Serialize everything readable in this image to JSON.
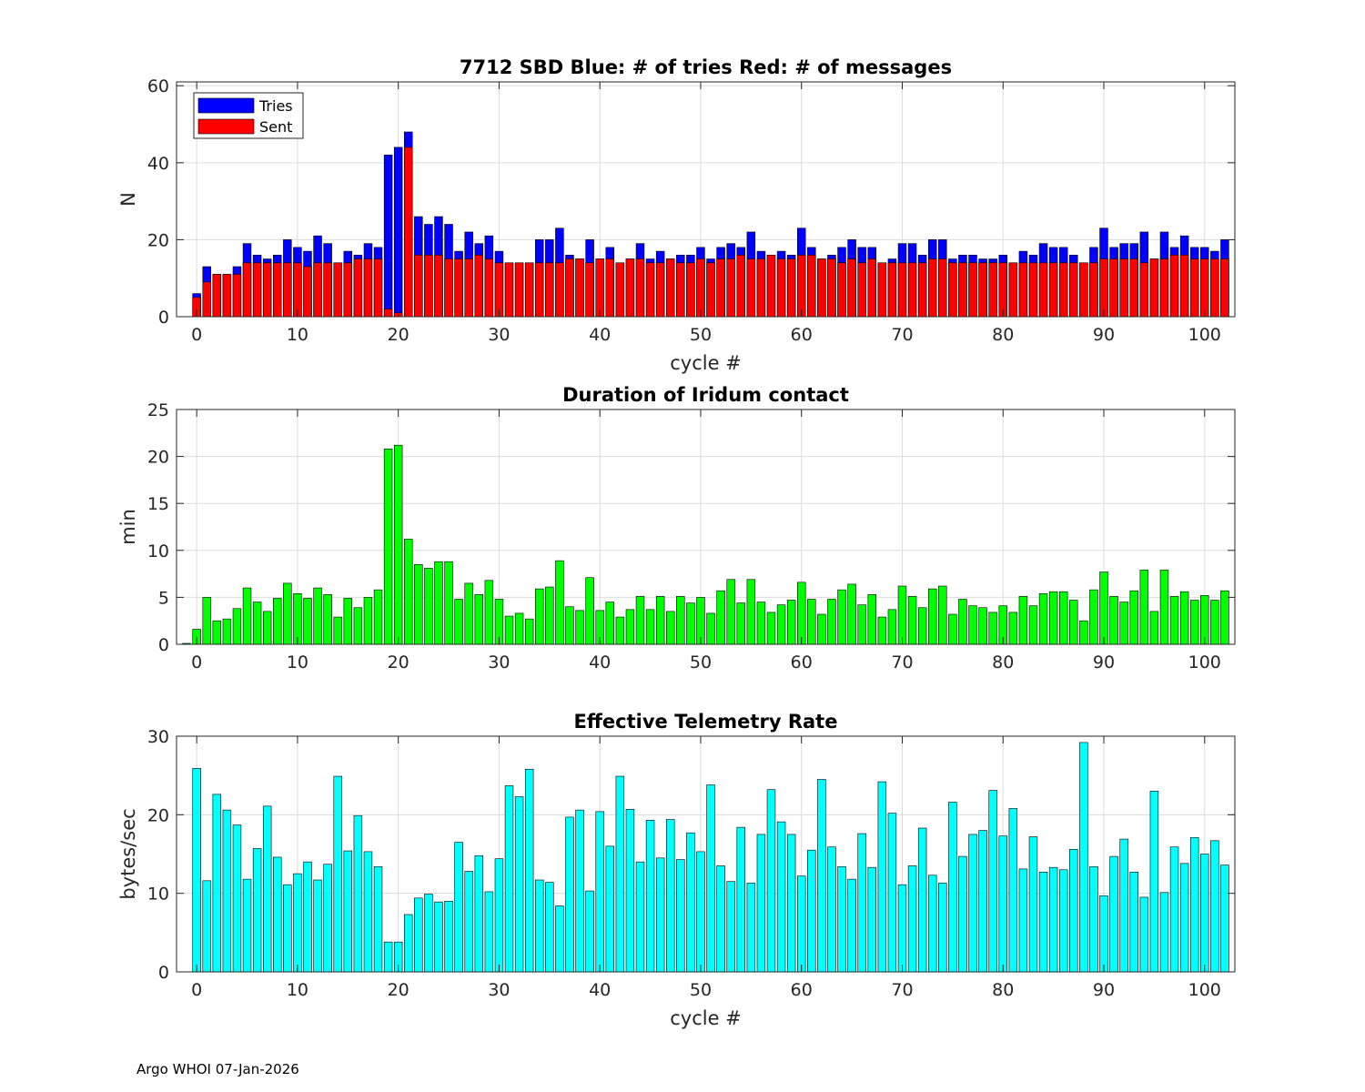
{
  "footer": "Argo WHOI 07-Jan-2026",
  "colors": {
    "tries": "#0000ff",
    "sent": "#ff0000",
    "duration": "#00ff00",
    "rate": "#00ffff",
    "grid": "#dcdcdc",
    "axis": "#262626"
  },
  "chart_data": [
    {
      "type": "bar",
      "title": "7712 SBD  Blue: # of tries   Red: # of messages",
      "xlabel": "cycle #",
      "ylabel": "N",
      "xlim": [
        -2,
        103
      ],
      "ylim": [
        0,
        61
      ],
      "xticks": [
        0,
        10,
        20,
        30,
        40,
        50,
        60,
        70,
        80,
        90,
        100
      ],
      "yticks": [
        0,
        20,
        40,
        60
      ],
      "legend": {
        "position": "top-left",
        "entries": [
          "Tries",
          "Sent"
        ]
      },
      "x_start": 0,
      "series": [
        {
          "name": "Tries",
          "values": [
            6,
            13,
            11,
            11,
            13,
            19,
            16,
            15,
            16,
            20,
            18,
            17,
            21,
            19,
            14,
            17,
            16,
            19,
            18,
            42,
            44,
            48,
            26,
            24,
            26,
            24,
            17,
            22,
            19,
            21,
            17,
            14,
            14,
            14,
            20,
            20,
            23,
            16,
            15,
            20,
            15,
            18,
            14,
            15,
            19,
            15,
            17,
            15,
            16,
            16,
            18,
            15,
            18,
            19,
            18,
            22,
            17,
            16,
            17,
            16,
            23,
            18,
            15,
            16,
            18,
            20,
            18,
            18,
            14,
            15,
            19,
            19,
            16,
            20,
            20,
            15,
            16,
            16,
            15,
            15,
            16,
            14,
            17,
            16,
            19,
            18,
            18,
            16,
            14,
            18,
            23,
            18,
            19,
            19,
            22,
            15,
            22,
            18,
            21,
            18,
            18,
            17,
            20
          ]
        },
        {
          "name": "Sent",
          "values": [
            5,
            9,
            11,
            11,
            11,
            14,
            14,
            14,
            14,
            14,
            14,
            13,
            14,
            14,
            14,
            14,
            15,
            15,
            15,
            2,
            1,
            44,
            16,
            16,
            16,
            15,
            15,
            15,
            16,
            15,
            14,
            14,
            14,
            14,
            14,
            14,
            14,
            15,
            15,
            14,
            15,
            15,
            14,
            15,
            15,
            14,
            14,
            15,
            14,
            14,
            15,
            14,
            15,
            15,
            16,
            15,
            15,
            16,
            15,
            15,
            16,
            16,
            15,
            15,
            14,
            15,
            14,
            15,
            14,
            14,
            14,
            14,
            14,
            15,
            15,
            14,
            14,
            14,
            14,
            14,
            14,
            14,
            14,
            14,
            14,
            14,
            14,
            14,
            14,
            14,
            15,
            15,
            15,
            15,
            14,
            15,
            15,
            16,
            16,
            15,
            15,
            15,
            15
          ]
        }
      ]
    },
    {
      "type": "bar",
      "title": "Duration of Iridum contact",
      "xlabel": "",
      "ylabel": "min",
      "xlim": [
        -2,
        103
      ],
      "ylim": [
        0,
        25
      ],
      "xticks": [
        0,
        10,
        20,
        30,
        40,
        50,
        60,
        70,
        80,
        90,
        100
      ],
      "yticks": [
        0,
        5,
        10,
        15,
        20,
        25
      ],
      "x_start": -1,
      "series": [
        {
          "name": "Duration",
          "values": [
            0.1,
            1.6,
            5.0,
            2.5,
            2.7,
            3.8,
            6.0,
            4.5,
            3.5,
            4.9,
            6.5,
            5.4,
            4.9,
            6.0,
            5.3,
            2.9,
            4.9,
            3.9,
            5.0,
            5.8,
            20.8,
            21.2,
            11.2,
            8.5,
            8.1,
            8.8,
            8.8,
            4.8,
            6.5,
            5.3,
            6.8,
            4.8,
            3.0,
            3.3,
            2.7,
            5.9,
            6.1,
            8.9,
            4.0,
            3.6,
            7.1,
            3.6,
            4.5,
            2.9,
            3.7,
            5.1,
            3.7,
            5.1,
            3.5,
            5.1,
            4.4,
            5.0,
            3.3,
            5.7,
            6.9,
            4.4,
            6.9,
            4.5,
            3.4,
            4.2,
            4.7,
            6.6,
            4.8,
            3.2,
            4.8,
            5.8,
            6.4,
            4.2,
            5.3,
            2.9,
            3.7,
            6.2,
            5.1,
            3.9,
            5.9,
            6.2,
            3.2,
            4.8,
            4.1,
            3.9,
            3.4,
            4.1,
            3.4,
            5.1,
            4.1,
            5.4,
            5.6,
            5.6,
            4.7,
            2.5,
            5.8,
            7.7,
            5.1,
            4.5,
            5.7,
            7.9,
            3.5,
            7.9,
            5.1,
            5.6,
            4.7,
            5.2,
            4.7,
            5.7
          ]
        }
      ]
    },
    {
      "type": "bar",
      "title": "Effective Telemetry Rate",
      "xlabel": "cycle #",
      "ylabel": "bytes/sec",
      "xlim": [
        -2,
        103
      ],
      "ylim": [
        0,
        30
      ],
      "xticks": [
        0,
        10,
        20,
        30,
        40,
        50,
        60,
        70,
        80,
        90,
        100
      ],
      "yticks": [
        0,
        10,
        20,
        30
      ],
      "x_start": 0,
      "series": [
        {
          "name": "Rate",
          "values": [
            25.9,
            11.6,
            22.6,
            20.6,
            18.7,
            11.8,
            15.7,
            21.1,
            14.6,
            11.1,
            12.5,
            14.0,
            11.7,
            13.7,
            24.9,
            15.4,
            19.9,
            15.3,
            13.4,
            3.8,
            3.8,
            7.3,
            9.4,
            9.9,
            8.9,
            9.0,
            16.5,
            12.8,
            14.8,
            10.2,
            14.4,
            23.7,
            22.3,
            25.8,
            11.7,
            11.4,
            8.4,
            19.7,
            20.6,
            10.3,
            20.4,
            16.0,
            24.9,
            20.7,
            14.0,
            19.3,
            14.5,
            19.4,
            14.3,
            17.7,
            15.3,
            23.8,
            13.5,
            11.5,
            18.4,
            11.3,
            17.5,
            23.2,
            19.1,
            17.5,
            12.2,
            15.5,
            24.5,
            15.9,
            13.4,
            11.8,
            17.6,
            13.3,
            24.2,
            20.2,
            11.1,
            13.5,
            18.3,
            12.3,
            11.3,
            21.6,
            14.7,
            17.5,
            18.0,
            23.1,
            17.3,
            20.8,
            13.1,
            17.2,
            12.7,
            13.3,
            13.0,
            15.6,
            29.2,
            13.4,
            9.7,
            14.7,
            16.9,
            12.7,
            9.5,
            23.0,
            10.1,
            15.9,
            13.8,
            17.1,
            15.0,
            16.7,
            13.6
          ]
        }
      ]
    }
  ]
}
